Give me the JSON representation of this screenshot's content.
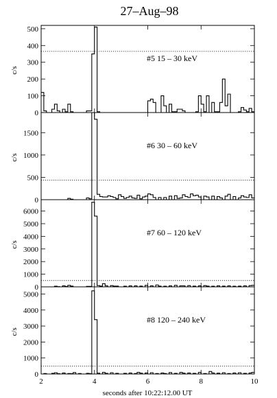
{
  "title": "27–Aug–98",
  "xlabel": "seconds after 10:22:12.00 UT",
  "chart_data": [
    {
      "type": "histogram",
      "label": "#5   15 – 30 keV",
      "ylabel": "c/s",
      "xlim": [
        2,
        10
      ],
      "ylim": [
        0,
        520
      ],
      "yticks": [
        0,
        100,
        200,
        300,
        400,
        500
      ],
      "threshold": 365,
      "bin_width": 0.1,
      "x_start": 2.0,
      "counts": [
        120,
        10,
        0,
        0,
        20,
        50,
        0,
        0,
        20,
        0,
        50,
        0,
        0,
        0,
        0,
        0,
        0,
        10,
        0,
        350,
        510,
        0,
        0,
        0,
        0,
        0,
        0,
        0,
        0,
        0,
        0,
        0,
        0,
        0,
        0,
        0,
        0,
        0,
        0,
        0,
        0,
        0,
        0,
        0,
        0,
        0,
        0,
        0,
        0,
        0,
        0,
        0,
        0,
        0,
        0,
        0,
        0,
        0,
        0,
        0,
        0,
        0,
        0,
        0,
        0,
        0,
        0,
        0,
        0,
        0,
        0,
        0,
        0,
        0,
        0,
        0,
        0,
        0,
        0,
        0,
        0
      ]
    },
    {
      "type": "histogram",
      "label": "#6   30 – 60 keV",
      "ylabel": "c/s",
      "xlim": [
        2,
        10
      ],
      "ylim": [
        0,
        1950
      ],
      "yticks": [
        0,
        500,
        1000,
        1500
      ],
      "threshold": 440,
      "bin_width": 0.1,
      "x_start": 2.0,
      "counts": []
    },
    {
      "type": "histogram",
      "label": "#7   60 – 120 keV",
      "ylabel": "c/s",
      "xlim": [
        2,
        10
      ],
      "ylim": [
        0,
        6900
      ],
      "yticks": [
        0,
        1000,
        2000,
        3000,
        4000,
        5000,
        6000
      ],
      "threshold": 500,
      "bin_width": 0.1,
      "x_start": 2.0,
      "counts": []
    },
    {
      "type": "histogram",
      "label": "#8  120 – 240 keV",
      "ylabel": "c/s",
      "xlim": [
        2,
        10
      ],
      "ylim": [
        0,
        5450
      ],
      "yticks": [
        0,
        1000,
        2000,
        3000,
        4000,
        5000
      ],
      "threshold": 500,
      "bin_width": 0.1,
      "x_start": 2.0,
      "counts": []
    }
  ],
  "xticks": [
    2,
    4,
    6,
    8,
    10
  ]
}
